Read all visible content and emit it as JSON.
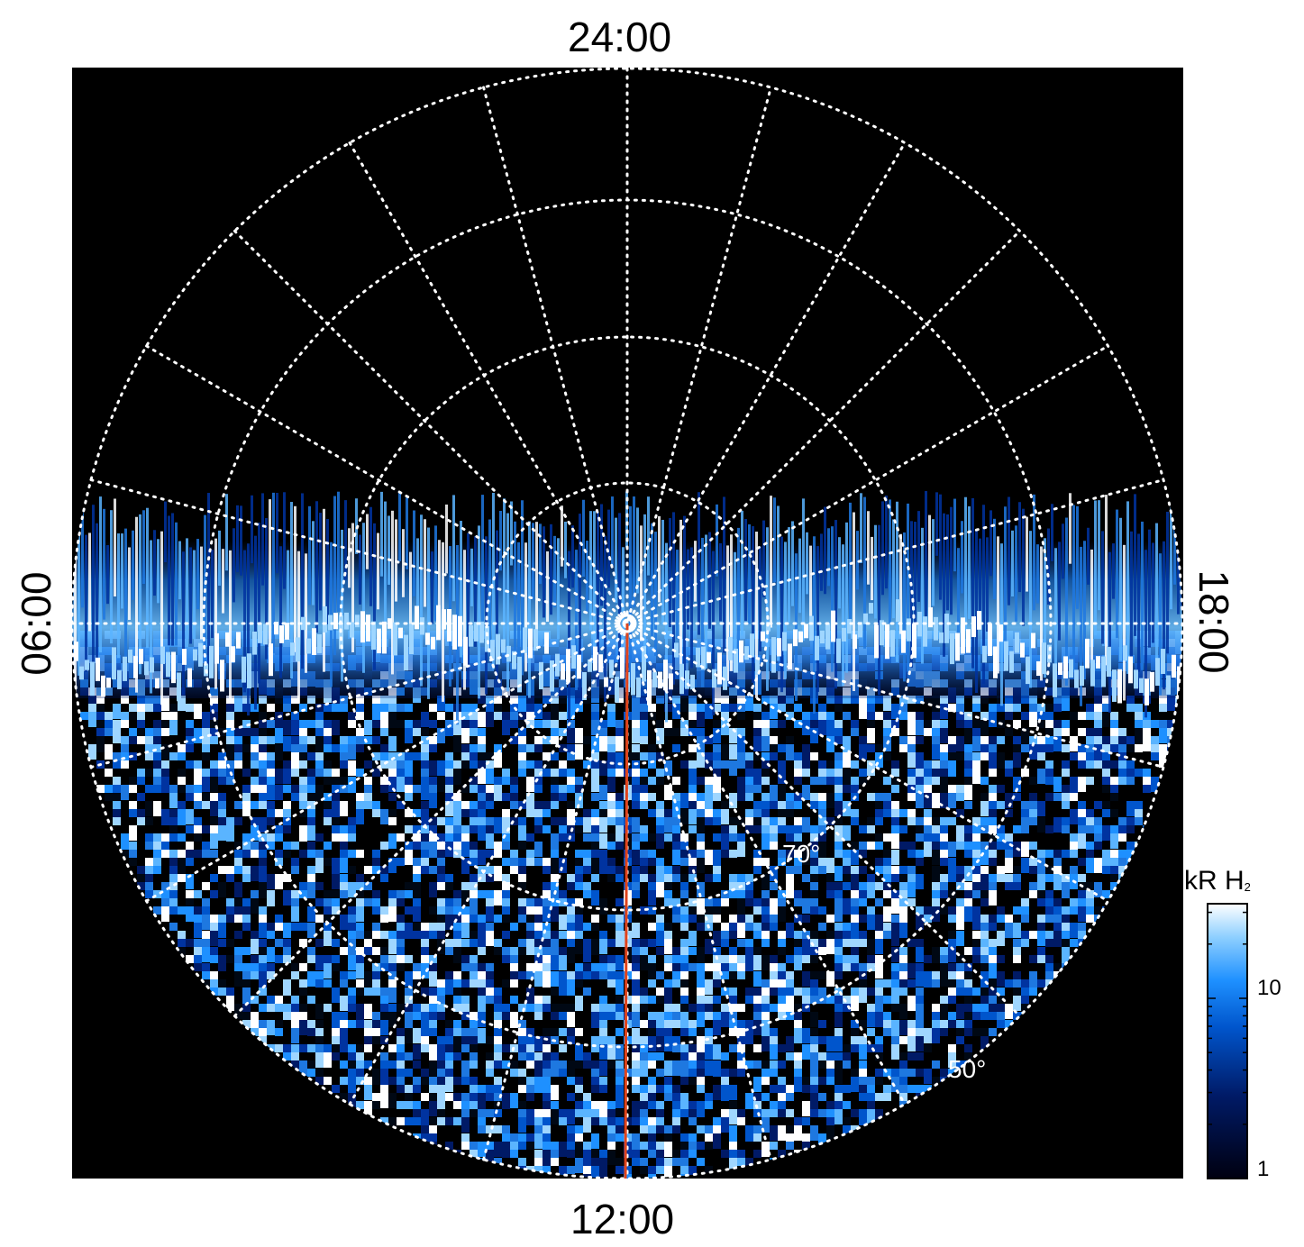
{
  "time_labels": {
    "top": "24:00",
    "bottom": "12:00",
    "left": "06:00",
    "right": "18:00"
  },
  "latitude_labels": {
    "inner": "70°",
    "outer": "50°"
  },
  "colorbar": {
    "unit": "kR H",
    "unit_subscript": "2",
    "ticks": [
      "10",
      "1"
    ],
    "scale": "log",
    "colors": [
      "#000010",
      "#001a66",
      "#0055cc",
      "#1e90ff",
      "#8fd0ff",
      "#ffffff"
    ]
  },
  "colors": {
    "background": "#000000",
    "grid": "#ffffff",
    "meridian": "#e0441c",
    "aurora_dark": "#001a66",
    "aurora_mid": "#1e90ff",
    "aurora_light": "#cfeeff"
  }
}
